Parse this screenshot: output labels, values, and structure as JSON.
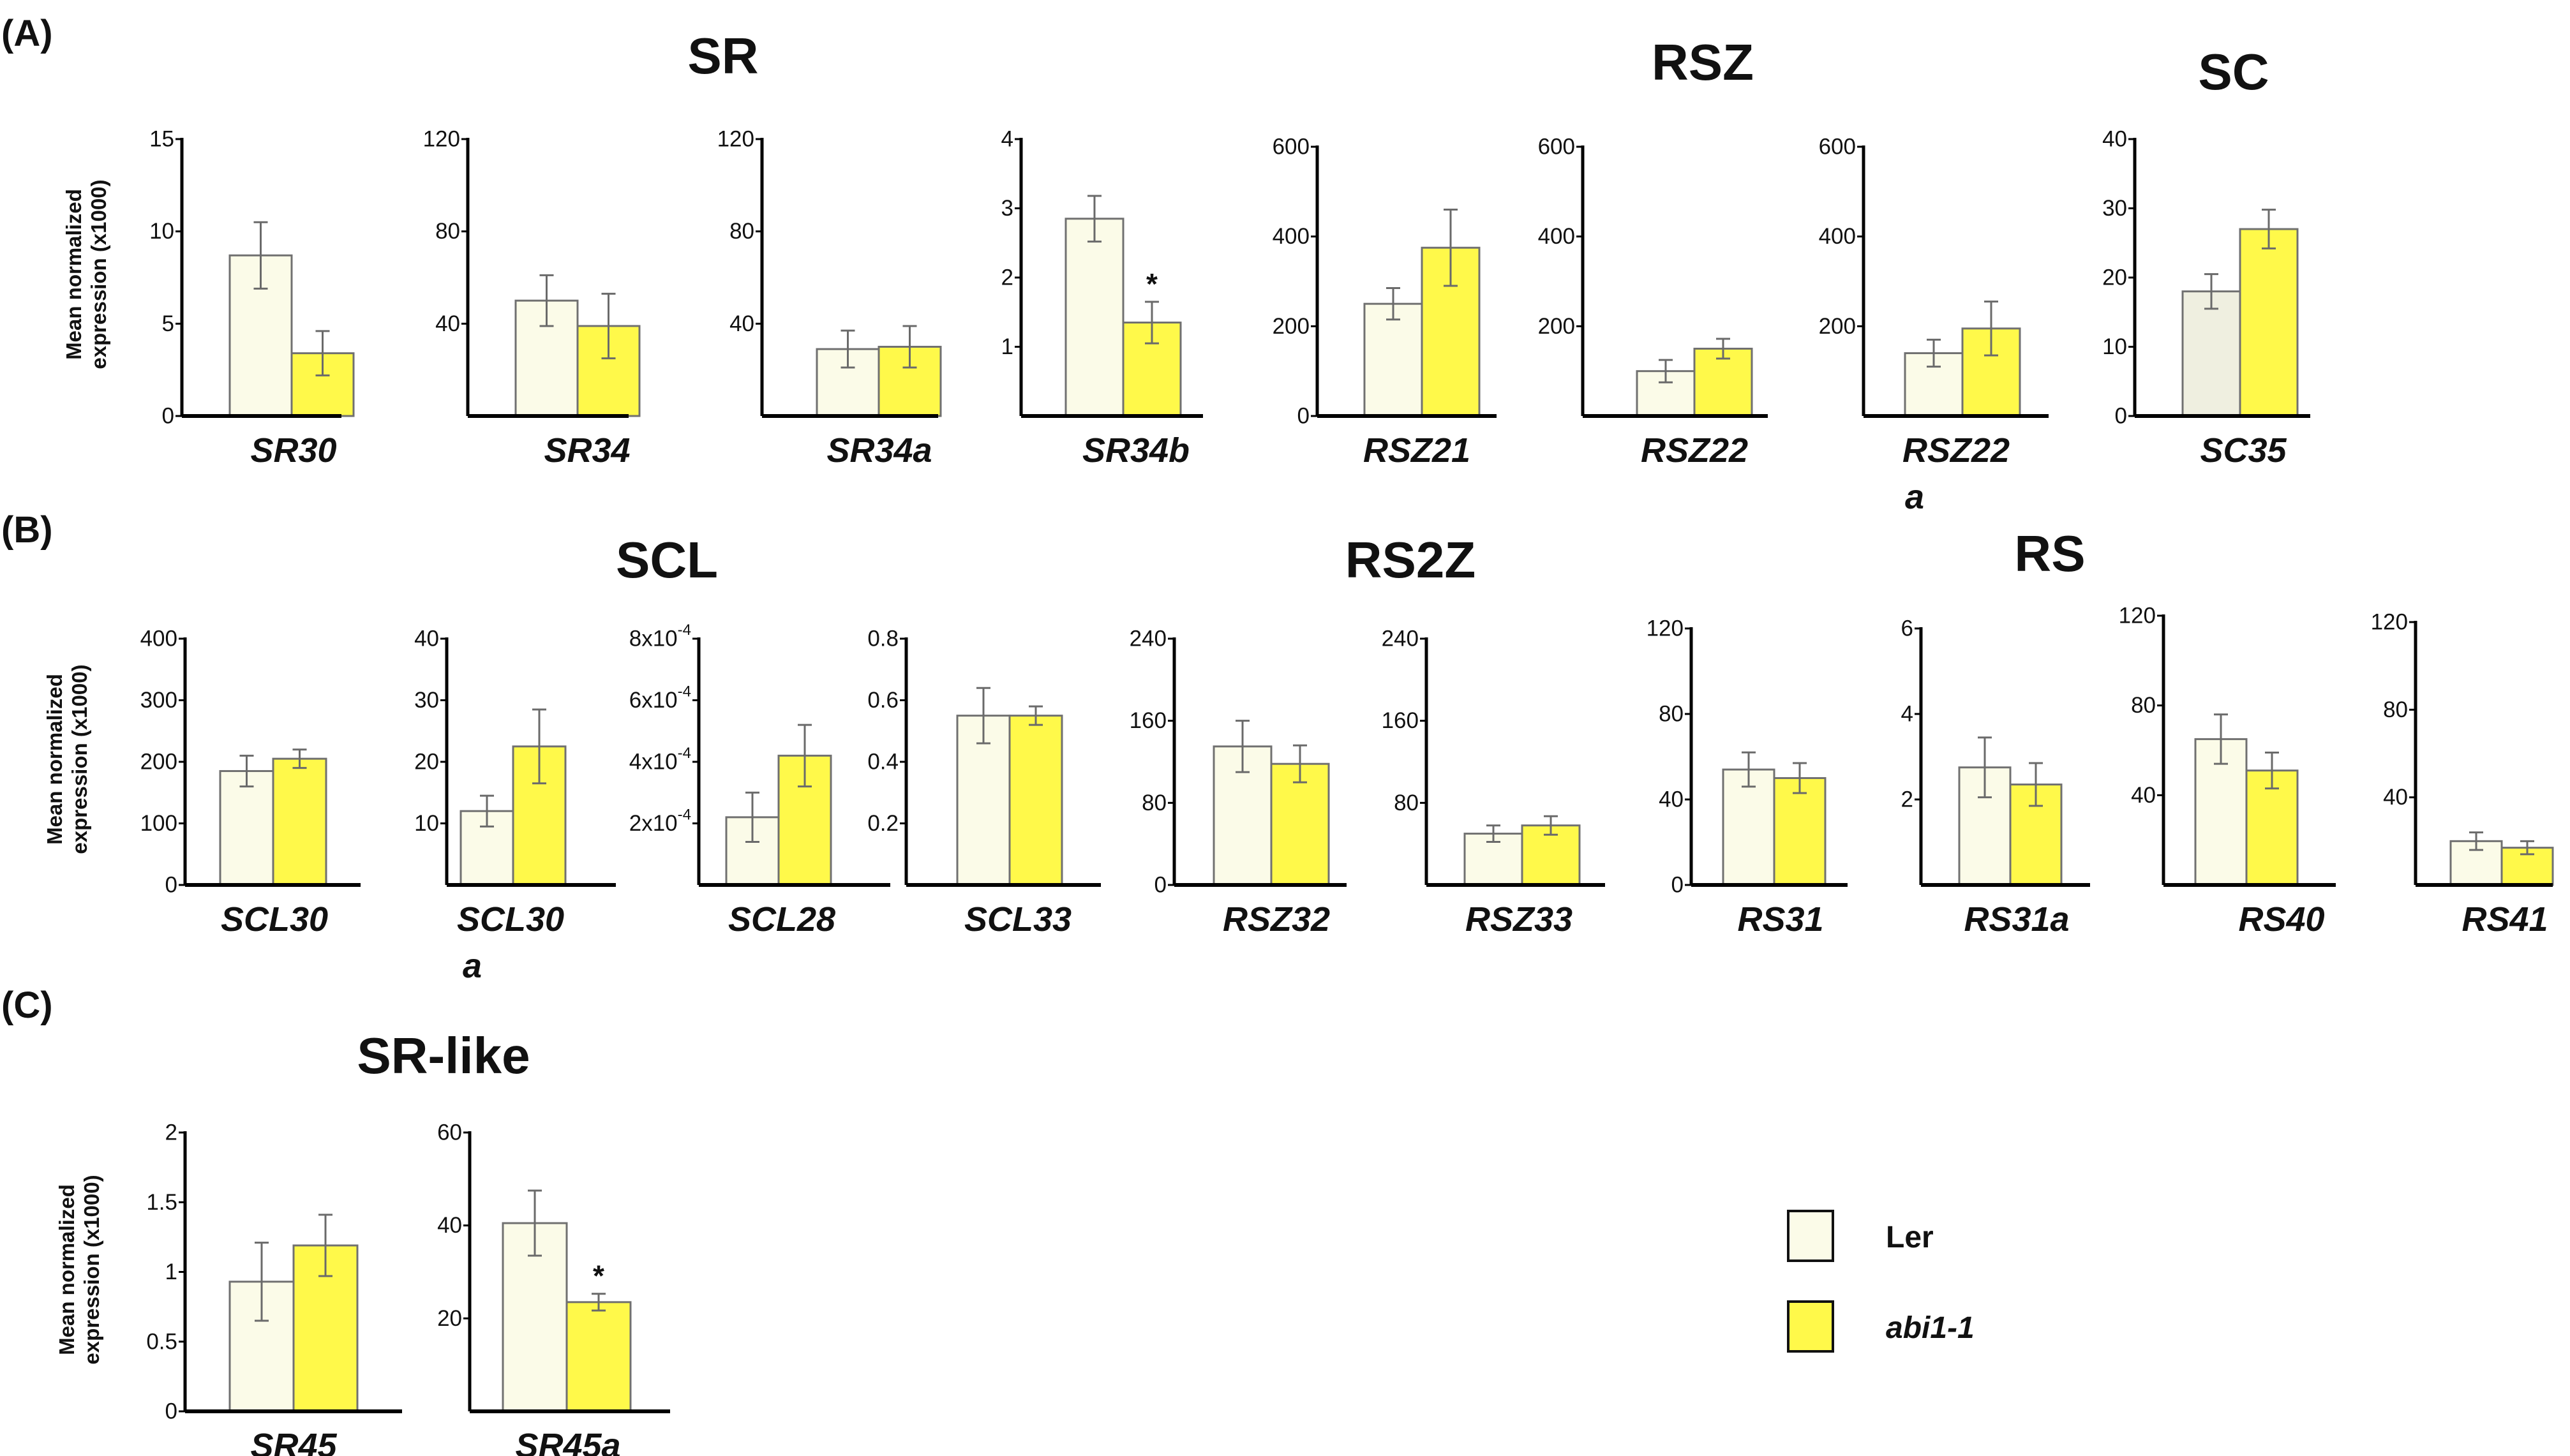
{
  "colors": {
    "ler": "#fbfbe8",
    "abi": "#fff94a",
    "scBar": "#efefe0",
    "edge": "#707070",
    "axis": "#000000",
    "err": "#6a6a6a"
  },
  "labels": {
    "panelA": "(A)",
    "panelB": "(B)",
    "panelC": "(C)",
    "famSR": "SR",
    "famRSZ": "RSZ",
    "famSC": "SC",
    "famSCL": "SCL",
    "famRS2Z": "RS2Z",
    "famRS": "RS",
    "famSRlike": "SR-like",
    "ylabel1": "Mean normalized",
    "ylabel2": "expression (x1000)"
  },
  "legend": {
    "ler": "Ler",
    "abi": "abi1-1"
  },
  "chart_data": [
    {
      "type": "bar",
      "panel": "A",
      "family": "SR",
      "gene": "SR30",
      "ylim": [
        0,
        15
      ],
      "yticks": [
        "0",
        "5",
        "10",
        "15"
      ],
      "series": [
        {
          "name": "Ler",
          "value": 8.7,
          "err": 1.8
        },
        {
          "name": "abi1-1",
          "value": 3.4,
          "err": 1.2
        }
      ]
    },
    {
      "type": "bar",
      "panel": "A",
      "family": "SR",
      "gene": "SR34",
      "ylim": [
        0,
        120
      ],
      "yticks": [
        "40",
        "80",
        "120"
      ],
      "series": [
        {
          "name": "Ler",
          "value": 50,
          "err": 11
        },
        {
          "name": "abi1-1",
          "value": 39,
          "err": 14
        }
      ]
    },
    {
      "type": "bar",
      "panel": "A",
      "family": "SR",
      "gene": "SR34a",
      "ylim": [
        0,
        120
      ],
      "yticks": [
        "40",
        "80",
        "120"
      ],
      "series": [
        {
          "name": "Ler",
          "value": 29,
          "err": 8
        },
        {
          "name": "abi1-1",
          "value": 30,
          "err": 9
        }
      ]
    },
    {
      "type": "bar",
      "panel": "A",
      "family": "SR",
      "gene": "SR34b",
      "ylim": [
        0,
        4
      ],
      "yticks": [
        "1",
        "2",
        "3",
        "4"
      ],
      "series": [
        {
          "name": "Ler",
          "value": 2.85,
          "err": 0.33
        },
        {
          "name": "abi1-1",
          "value": 1.35,
          "err": 0.3,
          "sig": "*"
        }
      ]
    },
    {
      "type": "bar",
      "panel": "A",
      "family": "RSZ",
      "gene": "RSZ21",
      "ylim": [
        0,
        600
      ],
      "yticks": [
        "0",
        "200",
        "400",
        "600"
      ],
      "series": [
        {
          "name": "Ler",
          "value": 250,
          "err": 35
        },
        {
          "name": "abi1-1",
          "value": 375,
          "err": 85
        }
      ]
    },
    {
      "type": "bar",
      "panel": "A",
      "family": "RSZ",
      "gene": "RSZ22",
      "ylim": [
        0,
        600
      ],
      "yticks": [
        "200",
        "400",
        "600"
      ],
      "series": [
        {
          "name": "Ler",
          "value": 100,
          "err": 25
        },
        {
          "name": "abi1-1",
          "value": 150,
          "err": 22
        }
      ]
    },
    {
      "type": "bar",
      "panel": "A",
      "family": "RSZ",
      "gene": "RSZ22",
      "gene2": "a",
      "ylim": [
        0,
        600
      ],
      "yticks": [
        "200",
        "400",
        "600"
      ],
      "series": [
        {
          "name": "Ler",
          "value": 140,
          "err": 30
        },
        {
          "name": "abi1-1",
          "value": 195,
          "err": 60
        }
      ]
    },
    {
      "type": "bar",
      "panel": "A",
      "family": "SC",
      "gene": "SC35",
      "ylim": [
        0,
        40
      ],
      "yticks": [
        "0",
        "10",
        "20",
        "30",
        "40"
      ],
      "series": [
        {
          "name": "Ler",
          "value": 18,
          "err": 2.5
        },
        {
          "name": "abi1-1",
          "value": 27,
          "err": 2.8
        }
      ]
    },
    {
      "type": "bar",
      "panel": "B",
      "family": "SCL",
      "gene": "SCL30",
      "ylim": [
        0,
        400
      ],
      "yticks": [
        "0",
        "100",
        "200",
        "300",
        "400"
      ],
      "series": [
        {
          "name": "Ler",
          "value": 185,
          "err": 25
        },
        {
          "name": "abi1-1",
          "value": 205,
          "err": 15
        }
      ]
    },
    {
      "type": "bar",
      "panel": "B",
      "family": "SCL",
      "gene": "SCL30",
      "gene2": "a",
      "ylim": [
        0,
        40
      ],
      "yticks": [
        "10",
        "20",
        "30",
        "40"
      ],
      "series": [
        {
          "name": "Ler",
          "value": 12,
          "err": 2.5
        },
        {
          "name": "abi1-1",
          "value": 22.5,
          "err": 6
        }
      ]
    },
    {
      "type": "bar",
      "panel": "B",
      "family": "SCL",
      "gene": "SCL28",
      "ylim": [
        0,
        0.0008
      ],
      "yticks": [
        "2x10-4",
        "4x10-4",
        "6x10-4",
        "8x10-4"
      ],
      "series": [
        {
          "name": "Ler",
          "value": 0.00022,
          "err": 8e-05
        },
        {
          "name": "abi1-1",
          "value": 0.00042,
          "err": 0.0001
        }
      ]
    },
    {
      "type": "bar",
      "panel": "B",
      "family": "SCL",
      "gene": "SCL33",
      "ylim": [
        0,
        0.8
      ],
      "yticks": [
        "0.2",
        "0.4",
        "0.6",
        "0.8"
      ],
      "series": [
        {
          "name": "Ler",
          "value": 0.55,
          "err": 0.09
        },
        {
          "name": "abi1-1",
          "value": 0.55,
          "err": 0.03
        }
      ]
    },
    {
      "type": "bar",
      "panel": "B",
      "family": "RS2Z",
      "gene": "RSZ32",
      "ylim": [
        0,
        240
      ],
      "yticks": [
        "0",
        "80",
        "160",
        "240"
      ],
      "series": [
        {
          "name": "Ler",
          "value": 135,
          "err": 25
        },
        {
          "name": "abi1-1",
          "value": 118,
          "err": 18
        }
      ]
    },
    {
      "type": "bar",
      "panel": "B",
      "family": "RS2Z",
      "gene": "RSZ33",
      "ylim": [
        0,
        240
      ],
      "yticks": [
        "80",
        "160",
        "240"
      ],
      "series": [
        {
          "name": "Ler",
          "value": 50,
          "err": 8
        },
        {
          "name": "abi1-1",
          "value": 58,
          "err": 9
        }
      ]
    },
    {
      "type": "bar",
      "panel": "B",
      "family": "RS",
      "gene": "RS31",
      "ylim": [
        0,
        120
      ],
      "yticks": [
        "0",
        "40",
        "80",
        "120"
      ],
      "series": [
        {
          "name": "Ler",
          "value": 54,
          "err": 8
        },
        {
          "name": "abi1-1",
          "value": 50,
          "err": 7
        }
      ]
    },
    {
      "type": "bar",
      "panel": "B",
      "family": "RS",
      "gene": "RS31a",
      "ylim": [
        0,
        6
      ],
      "yticks": [
        "2",
        "4",
        "6"
      ],
      "series": [
        {
          "name": "Ler",
          "value": 2.75,
          "err": 0.7
        },
        {
          "name": "abi1-1",
          "value": 2.35,
          "err": 0.5
        }
      ]
    },
    {
      "type": "bar",
      "panel": "B",
      "family": "RS",
      "gene": "RS40",
      "ylim": [
        0,
        120
      ],
      "yticks": [
        "40",
        "80",
        "120"
      ],
      "series": [
        {
          "name": "Ler",
          "value": 65,
          "err": 11
        },
        {
          "name": "abi1-1",
          "value": 51,
          "err": 8
        }
      ]
    },
    {
      "type": "bar",
      "panel": "B",
      "family": "RS",
      "gene": "RS41",
      "ylim": [
        0,
        120
      ],
      "yticks": [
        "40",
        "80",
        "120"
      ],
      "series": [
        {
          "name": "Ler",
          "value": 20,
          "err": 4
        },
        {
          "name": "abi1-1",
          "value": 17,
          "err": 3
        }
      ]
    },
    {
      "type": "bar",
      "panel": "C",
      "family": "SR-like",
      "gene": "SR45",
      "ylim": [
        0,
        2
      ],
      "yticks": [
        "0",
        "0.5",
        "1",
        "1.5",
        "2"
      ],
      "series": [
        {
          "name": "Ler",
          "value": 0.93,
          "err": 0.28
        },
        {
          "name": "abi1-1",
          "value": 1.19,
          "err": 0.22
        }
      ]
    },
    {
      "type": "bar",
      "panel": "C",
      "family": "SR-like",
      "gene": "SR45a",
      "ylim": [
        0,
        60
      ],
      "yticks": [
        "20",
        "40",
        "60"
      ],
      "series": [
        {
          "name": "Ler",
          "value": 40.5,
          "err": 7
        },
        {
          "name": "abi1-1",
          "value": 23.5,
          "err": 1.8,
          "sig": "*"
        }
      ]
    }
  ]
}
